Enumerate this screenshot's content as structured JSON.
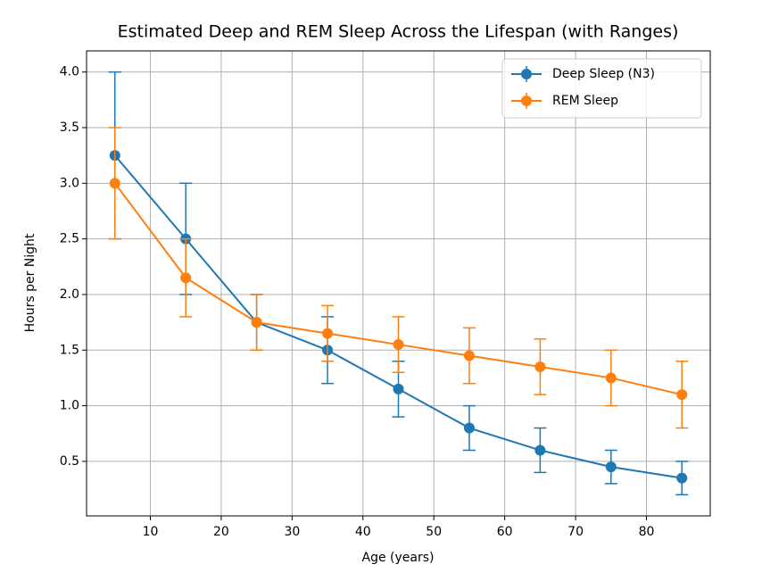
{
  "chart_data": {
    "type": "line",
    "title": "Estimated Deep and REM Sleep Across the Lifespan (with Ranges)",
    "x_label": "Age (years)",
    "y_label": "Hours per Night",
    "x": [
      5,
      15,
      25,
      35,
      45,
      55,
      65,
      75,
      85
    ],
    "series": [
      {
        "name": "Deep Sleep (N3)",
        "color": "#1f77b4",
        "values": [
          3.25,
          2.5,
          1.75,
          1.5,
          1.15,
          0.8,
          0.6,
          0.45,
          0.35
        ],
        "errors": [
          0.75,
          0.5,
          0.25,
          0.3,
          0.25,
          0.2,
          0.2,
          0.15,
          0.15
        ]
      },
      {
        "name": "REM Sleep",
        "color": "#ff7f0e",
        "values": [
          3.0,
          2.15,
          1.75,
          1.65,
          1.55,
          1.45,
          1.35,
          1.25,
          1.1
        ],
        "errors": [
          0.5,
          0.35,
          0.25,
          0.25,
          0.25,
          0.25,
          0.25,
          0.25,
          0.3
        ]
      }
    ],
    "xlim": [
      1,
      89
    ],
    "xticks": [
      10,
      20,
      30,
      40,
      50,
      60,
      70,
      80
    ],
    "ylim": [
      0.01,
      4.19
    ],
    "yticks": [
      {
        "value": 0.5,
        "label": "0.5"
      },
      {
        "value": 1,
        "label": "1.0"
      },
      {
        "value": 1.5,
        "label": "1.5"
      },
      {
        "value": 2,
        "label": "2.0"
      },
      {
        "value": 2.5,
        "label": "2.5"
      },
      {
        "value": 3,
        "label": "3.0"
      },
      {
        "value": 3.5,
        "label": "3.5"
      },
      {
        "value": 4,
        "label": "4.0"
      }
    ],
    "grid": true,
    "legend": "upper right"
  }
}
